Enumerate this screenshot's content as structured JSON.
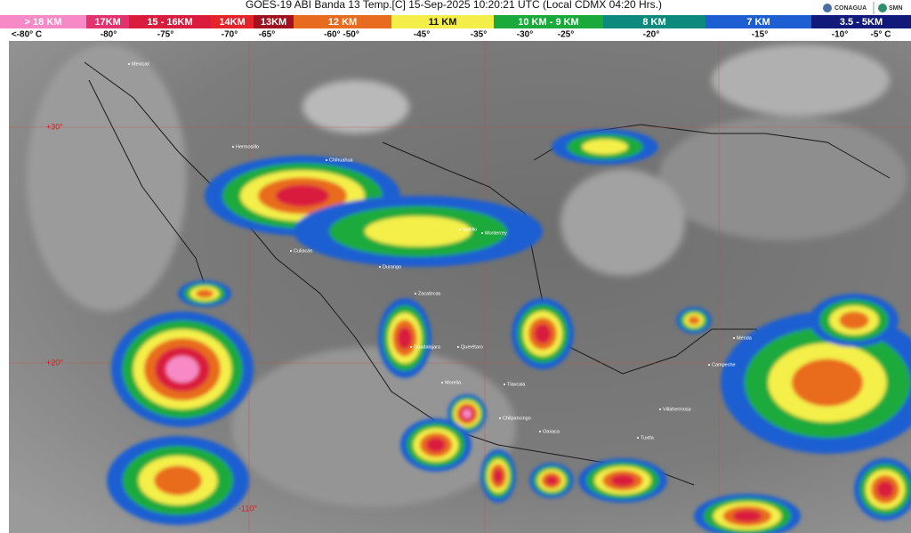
{
  "header": {
    "title": "GOES-19 ABI Banda 13 Temp.[C] 15-Sep-2025 10:20:21 UTC (Local CDMX  04:20 Hrs.)",
    "logos": [
      "CONAGUA",
      "SMN"
    ]
  },
  "legend": {
    "heights": [
      {
        "label": "> 18 KM",
        "color": "#f78ac6"
      },
      {
        "label": "17KM",
        "color": "#e2336f"
      },
      {
        "label": "15 - 16KM",
        "color": "#d91c3d"
      },
      {
        "label": "14KM",
        "color": "#e4232a"
      },
      {
        "label": "13KM",
        "color": "#a0101e"
      },
      {
        "label": "12 KM",
        "color": "#e86c1f"
      },
      {
        "label": "11 KM",
        "color": "#f4ef48"
      },
      {
        "label": "10 KM - 9 KM",
        "color": "#1aaa3c"
      },
      {
        "label": "8 KM",
        "color": "#0e8a7c"
      },
      {
        "label": "7 KM",
        "color": "#1d5fd2"
      },
      {
        "label": "3.5 - 5KM",
        "color": "#111a7a"
      }
    ],
    "temperatures": [
      "<-80° C",
      "-80°",
      "-75°",
      "-70°",
      "-65°",
      "-60°  -50°",
      "-45°",
      "-35°",
      "-30°",
      "-25°",
      "-20°",
      "-15°",
      "-10°",
      "-5° C"
    ]
  },
  "map": {
    "grid_labels": [
      "+30°",
      "+20°",
      "-110°"
    ],
    "places": [
      "Mexicali",
      "Hermosillo",
      "Chihuahua",
      "Culiacán",
      "Durango",
      "Saltillo",
      "Monterrey",
      "Zacatecas",
      "Guadalajara",
      "Querétaro",
      "Morelia",
      "Tlaxcala",
      "Chilpancingo",
      "Oaxaca",
      "Villahermosa",
      "Campeche",
      "Mérida",
      "Tuxtla"
    ]
  }
}
